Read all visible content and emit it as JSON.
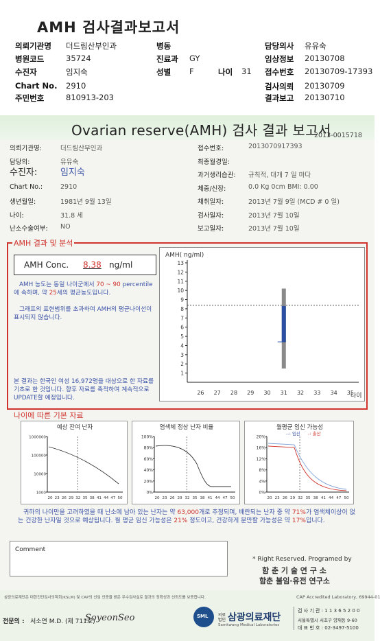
{
  "title": "AMH 검사결과보고서",
  "header_fields": {
    "institution_label": "의뢰기관명",
    "institution": "더드림산부인과",
    "ward_label": "병동",
    "doctor_label": "담당의사",
    "doctor": "유유숙",
    "hospital_code_label": "병원코드",
    "hospital_code": "35724",
    "dept_label": "진료과",
    "dept": "GY",
    "clinical_label": "임상정보",
    "clinical": "20130708",
    "patient_label": "수진자",
    "patient": "임지숙",
    "sex_label": "성별",
    "sex": "F",
    "age_label": "나이",
    "age": "31",
    "accession_label": "접수번호",
    "accession": "20130709-17393",
    "chart_label": "Chart No.",
    "chart": "2910",
    "request_label": "검사의뢰",
    "request": "20130709",
    "resident_label": "주민번호",
    "resident": "810913-203",
    "result_label": "결과보고",
    "result": "20130710"
  },
  "report": {
    "title": "Ovarian reserve(AMH) 검사 결과 보고서",
    "number": "2013-0015718",
    "left": [
      {
        "label": "의뢰기관명:",
        "value": "더드림산부인과"
      },
      {
        "label": "담당의:",
        "value": "유유숙"
      },
      {
        "label": "수진자:",
        "value": "임지숙"
      },
      {
        "label": "Chart No.:",
        "value": "2910"
      },
      {
        "label": "생년월일:",
        "value": "1981년 9월 13일"
      },
      {
        "label": "나이:",
        "value": "31.8 세"
      },
      {
        "label": "난소수술여부:",
        "value": "NO"
      }
    ],
    "right": [
      {
        "label": "접수번호:",
        "value": "2013070917393"
      },
      {
        "label": "최종월경일:",
        "value": ""
      },
      {
        "label": "과거생리습관:",
        "value": "규칙적, 대개    7 일 마다"
      },
      {
        "label": "체중/신장:",
        "value": "0.0 Kg        0cm   BMI:   0.00"
      },
      {
        "label": "채취일자:",
        "value": "2013년 7월 9일    (MCD #  0  일)"
      },
      {
        "label": "검사일자:",
        "value": "2013년 7월 10일"
      },
      {
        "label": "보고일자:",
        "value": "2013년 7월 10일"
      }
    ]
  },
  "amh_section": {
    "heading": "AMH 결과 및 분석",
    "conc_label": "AMH Conc.",
    "conc_value": "8.38",
    "conc_unit": "ng/ml",
    "para1_a": "AMH 농도는 동일 나이군에서",
    "para1_range": "70 ~ 90",
    "para1_b": "percentile에 속하며, 약",
    "para1_age": "25",
    "para1_c": "세의 평균농도입니다.",
    "para2": "그래프의 표현범위를 초과하여 AMH의 평균나이선이 표시되지 않습니다.",
    "para3": "본 결과는 한국인 여성 16,972명을 대상으로 한 자료를 기초로 한 것입니다. 향후 자료를 축적하여 계속적으로 UPDATE할 예정입니다."
  },
  "chart_data": [
    {
      "type": "box",
      "ylabel": "AMH( ng/ml)",
      "xlabel": "나이",
      "categories": [
        "26",
        "27",
        "28",
        "29",
        "30",
        "31",
        "32",
        "33",
        "34",
        "35"
      ],
      "ylim": [
        0,
        13
      ],
      "yticks": [
        "1",
        "2",
        "3",
        "4",
        "5",
        "6",
        "7",
        "8",
        "9",
        "10",
        "11",
        "12",
        "13"
      ],
      "reference_line": 8.38,
      "box": {
        "age": "31",
        "whisker_low": 1.5,
        "q1": 4.4,
        "q3": 8.3,
        "whisker_high": 10.2
      }
    },
    {
      "type": "line",
      "title": "예상 잔여 난자",
      "yticks": [
        "1000000",
        "100000",
        "10000",
        "1000"
      ],
      "xticks": [
        "20",
        "23",
        "26",
        "29",
        "32",
        "35",
        "38",
        "41",
        "44",
        "47",
        "50"
      ]
    },
    {
      "type": "line",
      "title": "염색체 정상 난자 비율",
      "yticks": [
        "100%",
        "80%",
        "60%",
        "40%",
        "20%",
        "0%"
      ],
      "xticks": [
        "20",
        "23",
        "26",
        "29",
        "32",
        "35",
        "38",
        "41",
        "44",
        "47",
        "50"
      ]
    },
    {
      "type": "line",
      "title": "월평균 임신 가능성",
      "legend": [
        "임신",
        "출산"
      ],
      "yticks": [
        "20%",
        "16%",
        "12%",
        "8%",
        "4%",
        "0%"
      ],
      "xticks": [
        "20",
        "23",
        "26",
        "29",
        "32",
        "35",
        "38",
        "41",
        "44",
        "47",
        "50"
      ]
    }
  ],
  "basic_section": {
    "heading": "나이에 따른 기본 자료",
    "summary_a": "귀하의 나이만을 고려하였을 때 난소에 남아 있는 난자는 약",
    "eggs": "63,000",
    "summary_b": "개로 추정되며, 배란되는 난자 중 약",
    "normal_pct": "71%",
    "summary_c": "가 염색체이상이 없는 건강한 난자일 것으로 예상됩니다. 월 평균 임신 가능성은",
    "preg_pct": "21%",
    "summary_d": "정도이고, 건강하게 분만할 가능성은 약",
    "birth_pct": "17%",
    "summary_e": "입니다."
  },
  "comment_label": "Comment",
  "rights": {
    "line1": "* Right Reserved. Programed by",
    "line2": "함 춘 기 술 연 구 소",
    "line3": "함춘 불임·유전 연구소"
  },
  "footer": {
    "cert": "삼광의료재단은 대한진단검사의학회(KSLM) 및 CAP의 신임 인증을 받은 우수검사실로 결과의 정확성과 신뢰도를 보증합니다.",
    "cap": "CAP Accredited Laboratory,   69944-01",
    "doctor_prefix": "전문의 :",
    "doctor": "서소연 M.D.  (제 711호)",
    "signature": "SoyeonSeo",
    "org_small": "의료법인",
    "org": "삼광의료재단",
    "org_en": "Samkwang Medical Laboratories",
    "lab_code": "검 사 기 관 : 1 1 3 6 5 2 0 0",
    "address": "서울특별시 서초구 양재동 9-60",
    "phone": "대 표 번 호 : 02-3497-5100"
  }
}
